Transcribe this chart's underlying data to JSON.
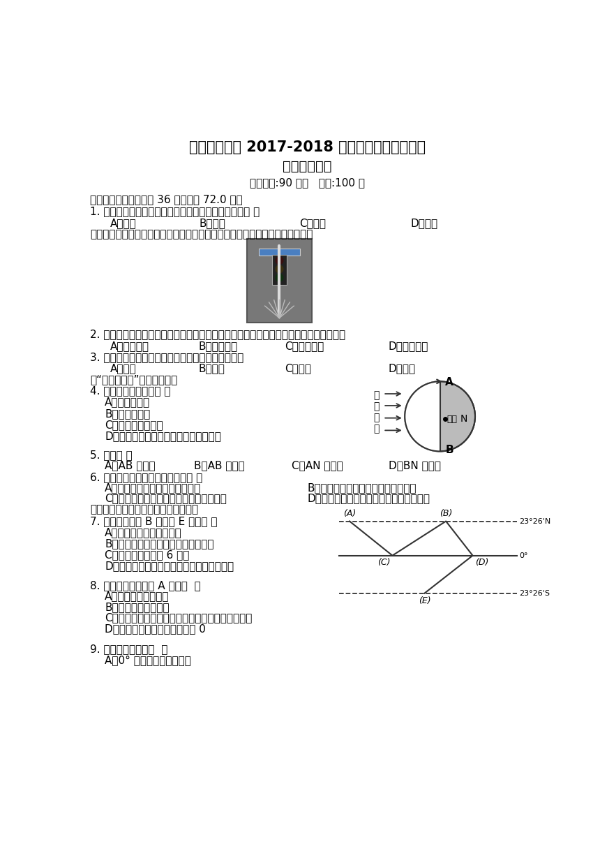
{
  "title1": "连江尚德中学 2017-2018 学年第一学期期中考试",
  "title2": "高一地理试卷",
  "subtitle": "考试时间:90 分钟   满分:100 分",
  "bg_color": "#ffffff",
  "text_color": "#000000",
  "section1": "一、单选题（本大题共 36 小题，共 72.0 分）",
  "q1": "1. 在晴朗的夜晚仰望星空，我们看到的星星多数是：（ ）",
  "q1_opts": [
    "A．卫星",
    "B．行星",
    "C．恒星",
    "D．流星"
  ],
  "q1_note": "在交通的十字路口处，我们经常见到如下图所示的交通信号灯。据此完成下题。",
  "q2": "2. 有人注意到在一周白天中，同一交通信号灯的亮度会出现变化，你认为影响因素主要是",
  "q2_opts": [
    "A．海拔高度",
    "B．电网供电",
    "C．阴晴状况",
    "D．交通流量"
  ],
  "q3": "3. 下列哪一城市大量设置这种交通信号灯效果会最好",
  "q3_opts": [
    "A．拉萨",
    "B．重庆",
    "C．大庆",
    "D．海口"
  ],
  "q3_note": "读“太阳光照图”，回答下题。",
  "q4": "4. 形成昼夜的原因是（ ）",
  "q4_opts": [
    "A．地球的自转",
    "B．地球的公转",
    "C．黄赤交角的存在",
    "D．地球是一个不发光、也不透明的球体"
  ],
  "q5": "5. 图中（ ）",
  "q5_opts": [
    "A．AB 是晨线",
    "B．AB 是昏线",
    "C．AN 是晨线",
    "D．BN 是晨线"
  ],
  "q6": "6. 下列有关地球公转至近日点时（ ）",
  "q6_opts": [
    "A．公转角速度较快，线速度较慢",
    "B．太阳直射点在赤道和北回归线之间",
    "C．南半球获得的太阳辐射热量比北半球多",
    "D．北半球正处于夏季，南半球正处于冬季"
  ],
  "q6_note": "读太阳直射点移动示意图，回答下题。",
  "q7": "7. 太阳直射点由 B 运行到 E 期间（ ）",
  "q7_opts": [
    "A．地球公转速度越来越慢",
    "B．北半球各地正午太阳高度越来越小",
    "C．所需时间大约为 6 个月",
    "D．南半球各地正午太阳高度达一年中最大值"
  ],
  "q8": "8. 当太阳直射点位于 A 处时（  ）",
  "q8_opts": [
    "A．地球公转速度最慢",
    "B．地球公转速度最快",
    "C．北回归线以北地区正午太阳高度达一年中最大值",
    "D．北极点附近正午太阳高度为 0"
  ],
  "q9": "9. 当黄赤交角为：（  ）",
  "q9_opts": [
    "A．0° 时世界各地四季分明"
  ]
}
